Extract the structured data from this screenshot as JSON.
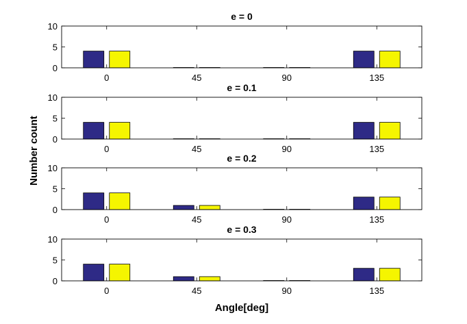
{
  "figure": {
    "ylabel": "Number count",
    "xlabel": "Angle[deg]",
    "colors": {
      "series_a": "#2e2a86",
      "series_b": "#f5f500",
      "axes": "#000000"
    }
  },
  "chart_data": [
    {
      "type": "bar",
      "title": "e = 0",
      "categories": [
        "0",
        "45",
        "90",
        "135"
      ],
      "series": [
        {
          "values": [
            4,
            0,
            0,
            4
          ]
        },
        {
          "values": [
            4,
            0,
            0,
            4
          ]
        }
      ],
      "ylim": [
        0,
        10
      ],
      "yticks": [
        0,
        5,
        10
      ]
    },
    {
      "type": "bar",
      "title": "e = 0.1",
      "categories": [
        "0",
        "45",
        "90",
        "135"
      ],
      "series": [
        {
          "values": [
            4,
            0,
            0,
            4
          ]
        },
        {
          "values": [
            4,
            0,
            0,
            4
          ]
        }
      ],
      "ylim": [
        0,
        10
      ],
      "yticks": [
        0,
        5,
        10
      ]
    },
    {
      "type": "bar",
      "title": "e = 0.2",
      "categories": [
        "0",
        "45",
        "90",
        "135"
      ],
      "series": [
        {
          "values": [
            4,
            1,
            0,
            3
          ]
        },
        {
          "values": [
            4,
            1,
            0,
            3
          ]
        }
      ],
      "ylim": [
        0,
        10
      ],
      "yticks": [
        0,
        5,
        10
      ]
    },
    {
      "type": "bar",
      "title": "e = 0.3",
      "categories": [
        "0",
        "45",
        "90",
        "135"
      ],
      "series": [
        {
          "values": [
            4,
            1,
            0,
            3
          ]
        },
        {
          "values": [
            4,
            1,
            0,
            3
          ]
        }
      ],
      "ylim": [
        0,
        10
      ],
      "yticks": [
        0,
        5,
        10
      ]
    }
  ]
}
